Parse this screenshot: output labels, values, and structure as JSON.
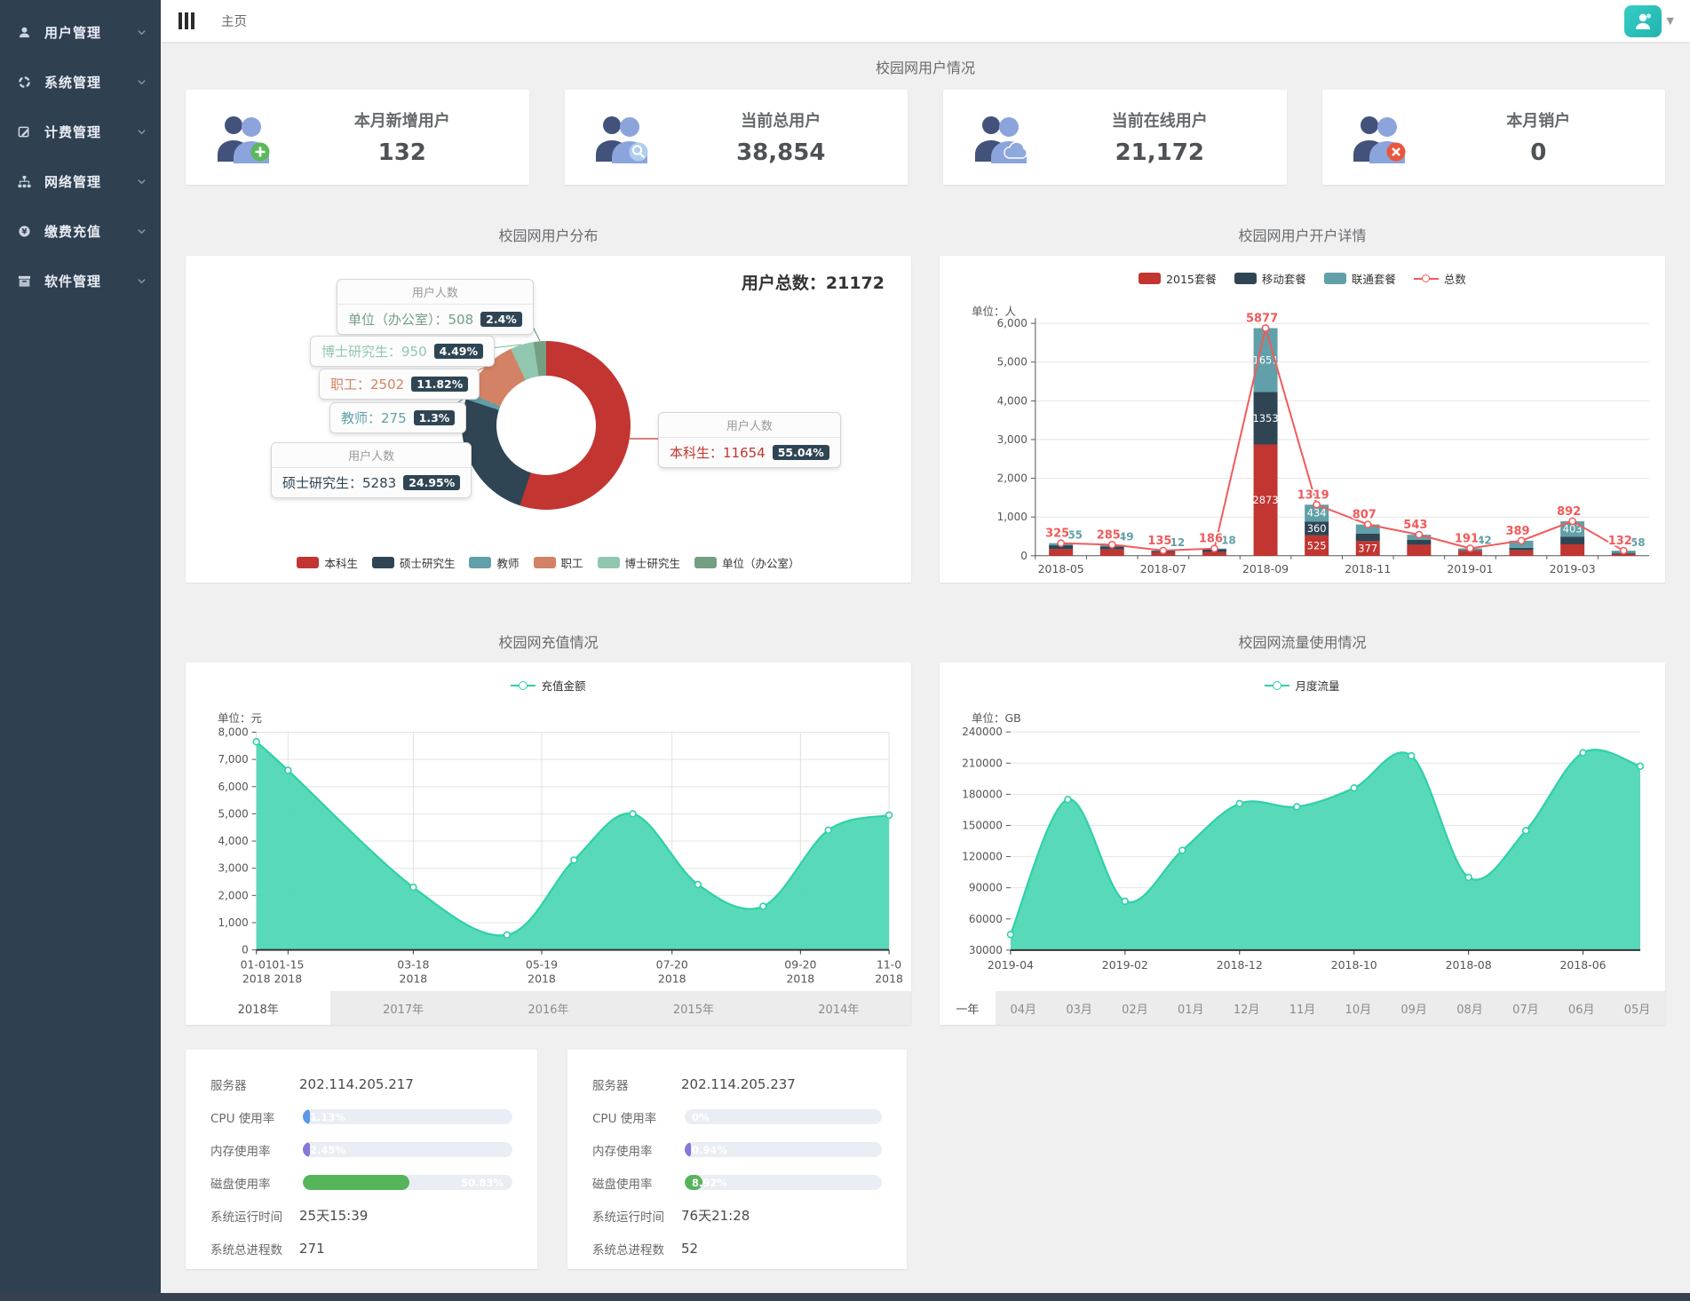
{
  "ui": {
    "sidebar": {
      "items": [
        {
          "key": "users",
          "label": "用户管理",
          "icon": "user-icon"
        },
        {
          "key": "system",
          "label": "系统管理",
          "icon": "system-icon"
        },
        {
          "key": "billing",
          "label": "计费管理",
          "icon": "billing-icon"
        },
        {
          "key": "network",
          "label": "网络管理",
          "icon": "network-icon"
        },
        {
          "key": "recharge",
          "label": "缴费充值",
          "icon": "recharge-icon"
        },
        {
          "key": "software",
          "label": "软件管理",
          "icon": "software-icon"
        }
      ]
    },
    "topbar": {
      "home": "主页"
    },
    "overview": {
      "title": "校园网用户情况"
    },
    "stats": [
      {
        "label": "本月新增用户",
        "value": "132",
        "badge": "plus",
        "badge_color": "#5cb85c"
      },
      {
        "label": "当前总用户",
        "value": "38,854",
        "badge": "search",
        "badge_color": "#aecdf0"
      },
      {
        "label": "当前在线用户",
        "value": "21,172",
        "badge": "cloud",
        "badge_color": "#8fa9dc"
      },
      {
        "label": "本月销户",
        "value": "0",
        "badge": "close",
        "badge_color": "#e9573f"
      }
    ],
    "recharge_tabs": {
      "tabs": [
        "2018年",
        "2017年",
        "2016年",
        "2015年",
        "2014年"
      ],
      "active": 0
    },
    "flow_tabs": {
      "tabs": [
        "一年",
        "04月",
        "03月",
        "02月",
        "01月",
        "12月",
        "11月",
        "10月",
        "09月",
        "08月",
        "07月",
        "06月",
        "05月"
      ],
      "active": 0
    },
    "servers": [
      {
        "server_label": "服务器",
        "ip": "202.114.205.217",
        "cpu_label": "CPU 使用率",
        "cpu_text": "1.13%",
        "cpu_pct": 1.13,
        "mem_label": "内存使用率",
        "mem_text": "2.45%",
        "mem_pct": 2.45,
        "disk_label": "磁盘使用率",
        "disk_text": "50.83%",
        "disk_pct": 50.83,
        "uptime_label": "系统运行时间",
        "uptime": "25天15:39",
        "proc_label": "系统总进程数",
        "proc": "271"
      },
      {
        "server_label": "服务器",
        "ip": "202.114.205.237",
        "cpu_label": "CPU 使用率",
        "cpu_text": "0%",
        "cpu_pct": 0,
        "mem_label": "内存使用率",
        "mem_text": "0.94%",
        "mem_pct": 0.94,
        "disk_label": "磁盘使用率",
        "disk_text": "8.92%",
        "disk_pct": 8.92,
        "uptime_label": "系统运行时间",
        "uptime": "76天21:28",
        "proc_label": "系统总进程数",
        "proc": "52"
      }
    ],
    "colors": {
      "cpu": "#5e97e8",
      "mem": "#8677d9",
      "disk": "#56b55a",
      "line_red": "#f25a5a",
      "mint_fill": "#4fd8b4",
      "mint_line": "#2fd0a8"
    }
  },
  "chart_data": [
    {
      "type": "pie",
      "title": "校园网用户分布",
      "total_text": "用户总数：21172",
      "total": 21172,
      "callout_header": "用户人数",
      "segments": [
        {
          "name": "本科生",
          "value": 11654,
          "pct": "55.04%",
          "color": "#c23531"
        },
        {
          "name": "硕士研究生",
          "value": 5283,
          "pct": "24.95%",
          "color": "#2f4554"
        },
        {
          "name": "教师",
          "value": 275,
          "pct": "1.3%",
          "color": "#61a0a8"
        },
        {
          "name": "职工",
          "value": 2502,
          "pct": "11.82%",
          "color": "#d48265"
        },
        {
          "name": "博士研究生",
          "value": 950,
          "pct": "4.49%",
          "color": "#91c7ae"
        },
        {
          "name": "单位（办公室）",
          "value": 508,
          "pct": "2.4%",
          "color": "#749f83"
        }
      ],
      "legend": [
        "本科生",
        "硕士研究生",
        "教师",
        "职工",
        "博士研究生",
        "单位（办公室）"
      ]
    },
    {
      "type": "bar",
      "title": "校园网用户开户详情",
      "unit": "单位：人",
      "categories": [
        "2018-05",
        "2018-06",
        "2018-07",
        "2018-08",
        "2018-09",
        "2018-10",
        "2018-11",
        "2018-12",
        "2019-01",
        "2019-02",
        "2019-03",
        "2019-04"
      ],
      "x_tick_labels": [
        "2018-05",
        "2018-07",
        "2018-09",
        "2018-11",
        "2019-01",
        "2019-03"
      ],
      "series": [
        {
          "name": "2015套餐",
          "color": "#c23531",
          "values": [
            171,
            163,
            89,
            97,
            2873,
            525,
            377,
            284,
            129,
            141,
            294,
            46
          ]
        },
        {
          "name": "移动套餐",
          "color": "#2f4554",
          "values": [
            99,
            73,
            34,
            71,
            1353,
            360,
            197,
            125,
            20,
            65,
            195,
            28
          ]
        },
        {
          "name": "联通套餐",
          "color": "#61a0a8",
          "values": [
            55,
            49,
            12,
            18,
            1651,
            434,
            233,
            134,
            42,
            183,
            403,
            58
          ]
        }
      ],
      "line": {
        "name": "总数",
        "color": "#f25a5a",
        "values": [
          325,
          285,
          135,
          186,
          5877,
          1319,
          807,
          543,
          191,
          389,
          892,
          132
        ]
      },
      "ylim": [
        0,
        6000
      ],
      "ystep": 1000,
      "legend_position": "top"
    },
    {
      "type": "area",
      "title": "校园网充值情况",
      "legend": "充值金额",
      "unit": "单位：元",
      "points": [
        [
          0,
          7650
        ],
        [
          5,
          6600
        ],
        [
          24.8,
          2300
        ],
        [
          39.6,
          550
        ],
        [
          50.2,
          3300
        ],
        [
          59.5,
          5000
        ],
        [
          69.8,
          2400
        ],
        [
          80.1,
          1600
        ],
        [
          90.4,
          4400
        ],
        [
          100,
          4950
        ]
      ],
      "x_ticks": [
        {
          "pos": 0,
          "label": "01-01",
          "sub": "2018"
        },
        {
          "pos": 5,
          "label": "01-15",
          "sub": "2018"
        },
        {
          "pos": 24.8,
          "label": "03-18",
          "sub": "2018"
        },
        {
          "pos": 45.1,
          "label": "05-19",
          "sub": "2018"
        },
        {
          "pos": 65.7,
          "label": "07-20",
          "sub": "2018"
        },
        {
          "pos": 86,
          "label": "09-20",
          "sub": "2018"
        },
        {
          "pos": 100,
          "label": "11-0",
          "sub": "2018"
        }
      ],
      "ylim": [
        0,
        8000
      ],
      "ystep": 1000,
      "vgrid": true,
      "grid": true
    },
    {
      "type": "area",
      "title": "校园网流量使用情况",
      "legend": "月度流量",
      "unit": "单位：GB",
      "categories": [
        "2019-04",
        "2019-03",
        "2019-02",
        "2019-01",
        "2018-12",
        "2018-11",
        "2018-10",
        "2018-09",
        "2018-08",
        "2018-07",
        "2018-06",
        "2018-05"
      ],
      "x_tick_labels": [
        "2019-04",
        "2019-02",
        "2018-12",
        "2018-10",
        "2018-08",
        "2018-06"
      ],
      "values": [
        45000,
        175000,
        77000,
        126000,
        171000,
        168000,
        186000,
        217000,
        100000,
        145000,
        220000,
        207000
      ],
      "ylim": [
        30000,
        240000
      ],
      "ystep": 30000,
      "vgrid": false,
      "grid": true
    }
  ]
}
